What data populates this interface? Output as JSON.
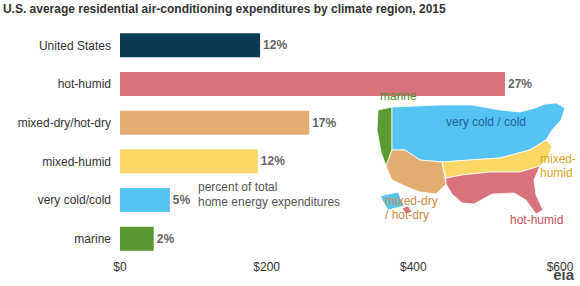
{
  "chart_data": {
    "type": "bar",
    "orientation": "horizontal",
    "title": "U.S. average residential air-conditioning expenditures by climate region, 2015",
    "categories": [
      "United States",
      "hot-humid",
      "mixed-dry/hot-dry",
      "mixed-humid",
      "very cold/cold",
      "marine"
    ],
    "values": [
      191,
      525,
      258,
      188,
      68,
      46
    ],
    "colors": [
      "#0b3a53",
      "#d9727c",
      "#e3ad72",
      "#fbd766",
      "#56c4f2",
      "#5a9a32"
    ],
    "share_labels": [
      "12%",
      "27%",
      "17%",
      "12%",
      "5%",
      "2%"
    ],
    "xlim": [
      0,
      600
    ],
    "xticks": [
      {
        "value": 0,
        "label": "$0"
      },
      {
        "value": 200,
        "label": "$200"
      },
      {
        "value": 400,
        "label": "$400"
      },
      {
        "value": 600,
        "label": "$600"
      }
    ],
    "grid": false,
    "annotation": [
      "percent of total",
      "home energy expenditures"
    ],
    "map_labels": [
      {
        "lines": [
          "marine"
        ],
        "color": "#4f8f2a"
      },
      {
        "lines": [
          "very cold / cold"
        ],
        "color": "#1f5f9a"
      },
      {
        "lines": [
          "mixed-",
          "humid"
        ],
        "color": "#d9a91c"
      },
      {
        "lines": [
          "mixed-dry",
          "/ hot-dry"
        ],
        "color": "#c98a45"
      },
      {
        "lines": [
          "hot-humid"
        ],
        "color": "#c9505c"
      }
    ],
    "source": "eia"
  }
}
